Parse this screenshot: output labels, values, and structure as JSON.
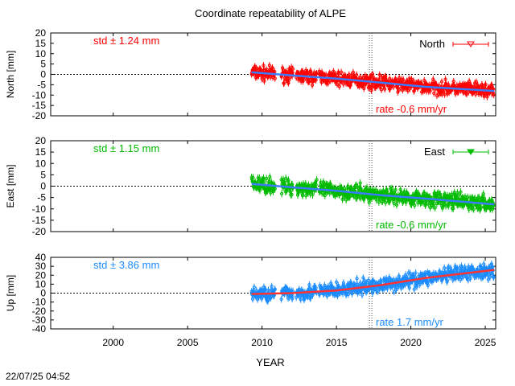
{
  "title": "Coordinate repeatability of ALPE",
  "timestamp": "22/07/25 04:52",
  "chart_data": {
    "type": "scatter",
    "xlabel": "YEAR",
    "xlim": [
      1995.8,
      2025.7
    ],
    "xticks": [
      2000,
      2005,
      2010,
      2015,
      2020,
      2025
    ],
    "data_start": 2009.3,
    "data_end": 2025.6,
    "vertical_marker": 2017.3,
    "panels": [
      {
        "name": "North",
        "ylabel": "North [mm]",
        "ylim": [
          -20,
          20
        ],
        "yticks": [
          20,
          15,
          10,
          5,
          0,
          -5,
          -10,
          -15,
          -20
        ],
        "std_label": "std ± 1.24 mm",
        "rate_label": "rate -0.6 mm/yr",
        "legend": "North",
        "color": "#ff0000",
        "trend_color": "#3b7bff",
        "noise_mm": 2.5,
        "trend": [
          [
            2009.3,
            1.0
          ],
          [
            2012,
            -0.5
          ],
          [
            2015,
            -2.0
          ],
          [
            2018,
            -4.0
          ],
          [
            2021,
            -6.0
          ],
          [
            2025.6,
            -8.0
          ]
        ]
      },
      {
        "name": "East",
        "ylabel": "East [mm]",
        "ylim": [
          -20,
          20
        ],
        "yticks": [
          20,
          15,
          10,
          5,
          0,
          -5,
          -10,
          -15,
          -20
        ],
        "std_label": "std ± 1.15 mm",
        "rate_label": "rate -0.6 mm/yr",
        "legend": "East",
        "color": "#00bb00",
        "trend_color": "#3b7bff",
        "noise_mm": 2.5,
        "trend": [
          [
            2009.3,
            1.0
          ],
          [
            2012,
            -0.5
          ],
          [
            2015,
            -2.0
          ],
          [
            2018,
            -4.0
          ],
          [
            2021,
            -5.5
          ],
          [
            2025.6,
            -8.0
          ]
        ]
      },
      {
        "name": "Up",
        "ylabel": "Up [mm]",
        "ylim": [
          -40,
          40
        ],
        "yticks": [
          40,
          30,
          20,
          10,
          0,
          -10,
          -20,
          -30,
          -40
        ],
        "std_label": "std ± 3.86 mm",
        "rate_label": "rate  1.7 mm/yr",
        "legend": "",
        "color": "#1a8cff",
        "trend_color": "#ff3333",
        "noise_mm": 6,
        "trend": [
          [
            2009.3,
            -1.0
          ],
          [
            2012,
            0.0
          ],
          [
            2015,
            3.0
          ],
          [
            2018,
            9.0
          ],
          [
            2021,
            17.0
          ],
          [
            2025.6,
            26.0
          ]
        ]
      }
    ]
  }
}
